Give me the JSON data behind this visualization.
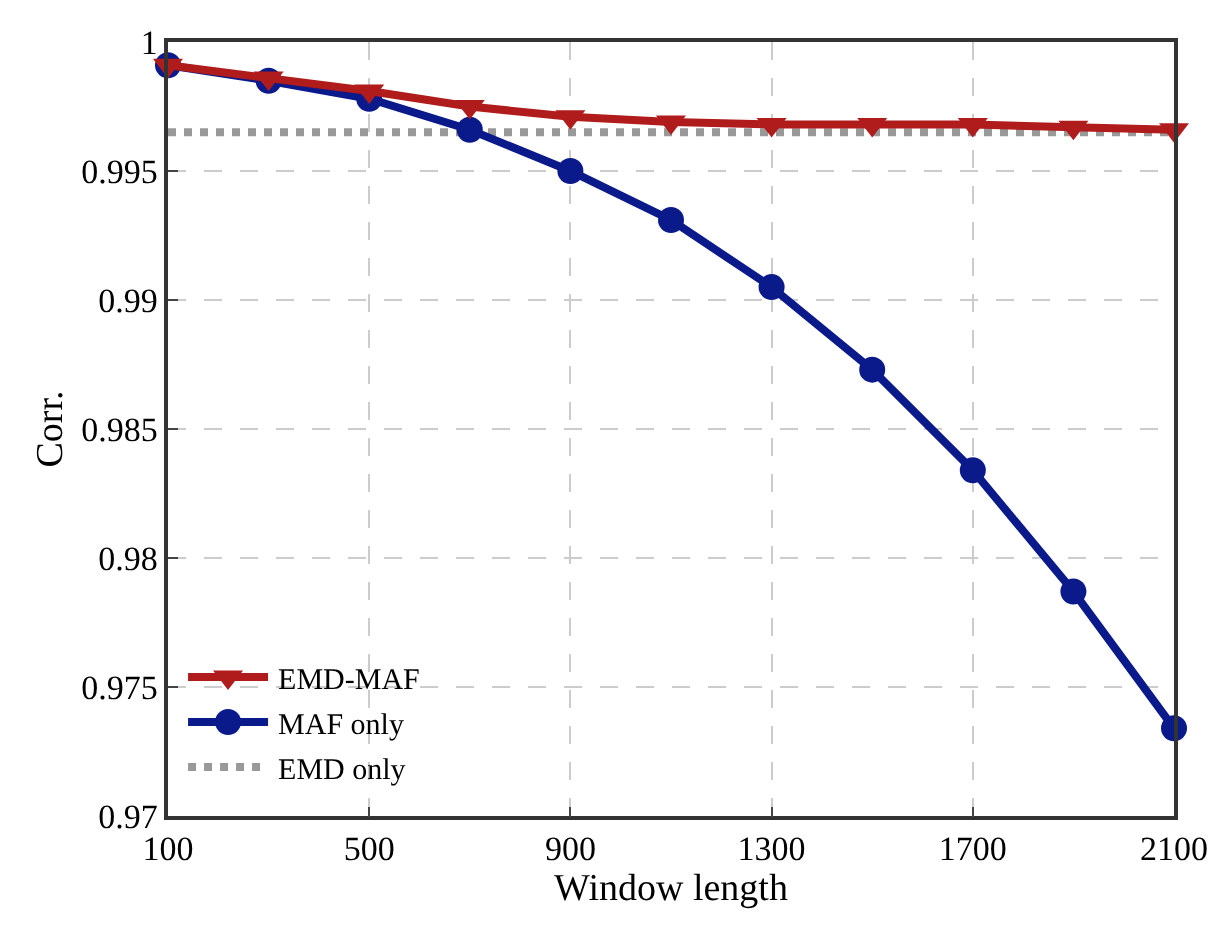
{
  "chart_data": {
    "type": "line",
    "xlabel": "Window length",
    "ylabel": "Corr.",
    "x": [
      100,
      300,
      500,
      700,
      900,
      1100,
      1300,
      1500,
      1700,
      1900,
      2100
    ],
    "series": [
      {
        "name": "EMD-MAF",
        "color": "#b01c1c",
        "marker": "triangle",
        "line_style": "solid",
        "values": [
          0.9991,
          0.9986,
          0.9981,
          0.9975,
          0.9971,
          0.9969,
          0.9968,
          0.9968,
          0.9968,
          0.9967,
          0.9966
        ]
      },
      {
        "name": "MAF only",
        "color": "#0a1a8a",
        "marker": "circle",
        "line_style": "solid",
        "values": [
          0.9991,
          0.9985,
          0.9978,
          0.9966,
          0.995,
          0.9931,
          0.9905,
          0.9873,
          0.9834,
          0.9787,
          0.9734
        ]
      },
      {
        "name": "EMD only",
        "color": "#999999",
        "marker": "none",
        "line_style": "dotted",
        "values": [
          0.9965,
          0.9965,
          0.9965,
          0.9965,
          0.9965,
          0.9965,
          0.9965,
          0.9965,
          0.9965,
          0.9965,
          0.9965
        ]
      }
    ],
    "xlim": [
      100,
      2100
    ],
    "xticks": [
      100,
      500,
      900,
      1300,
      1700,
      2100
    ],
    "ylim": [
      0.97,
      1
    ],
    "yticks": [
      0.97,
      0.975,
      0.98,
      0.985,
      0.99,
      0.995,
      1
    ],
    "grid": true,
    "legend": "bottom left"
  }
}
